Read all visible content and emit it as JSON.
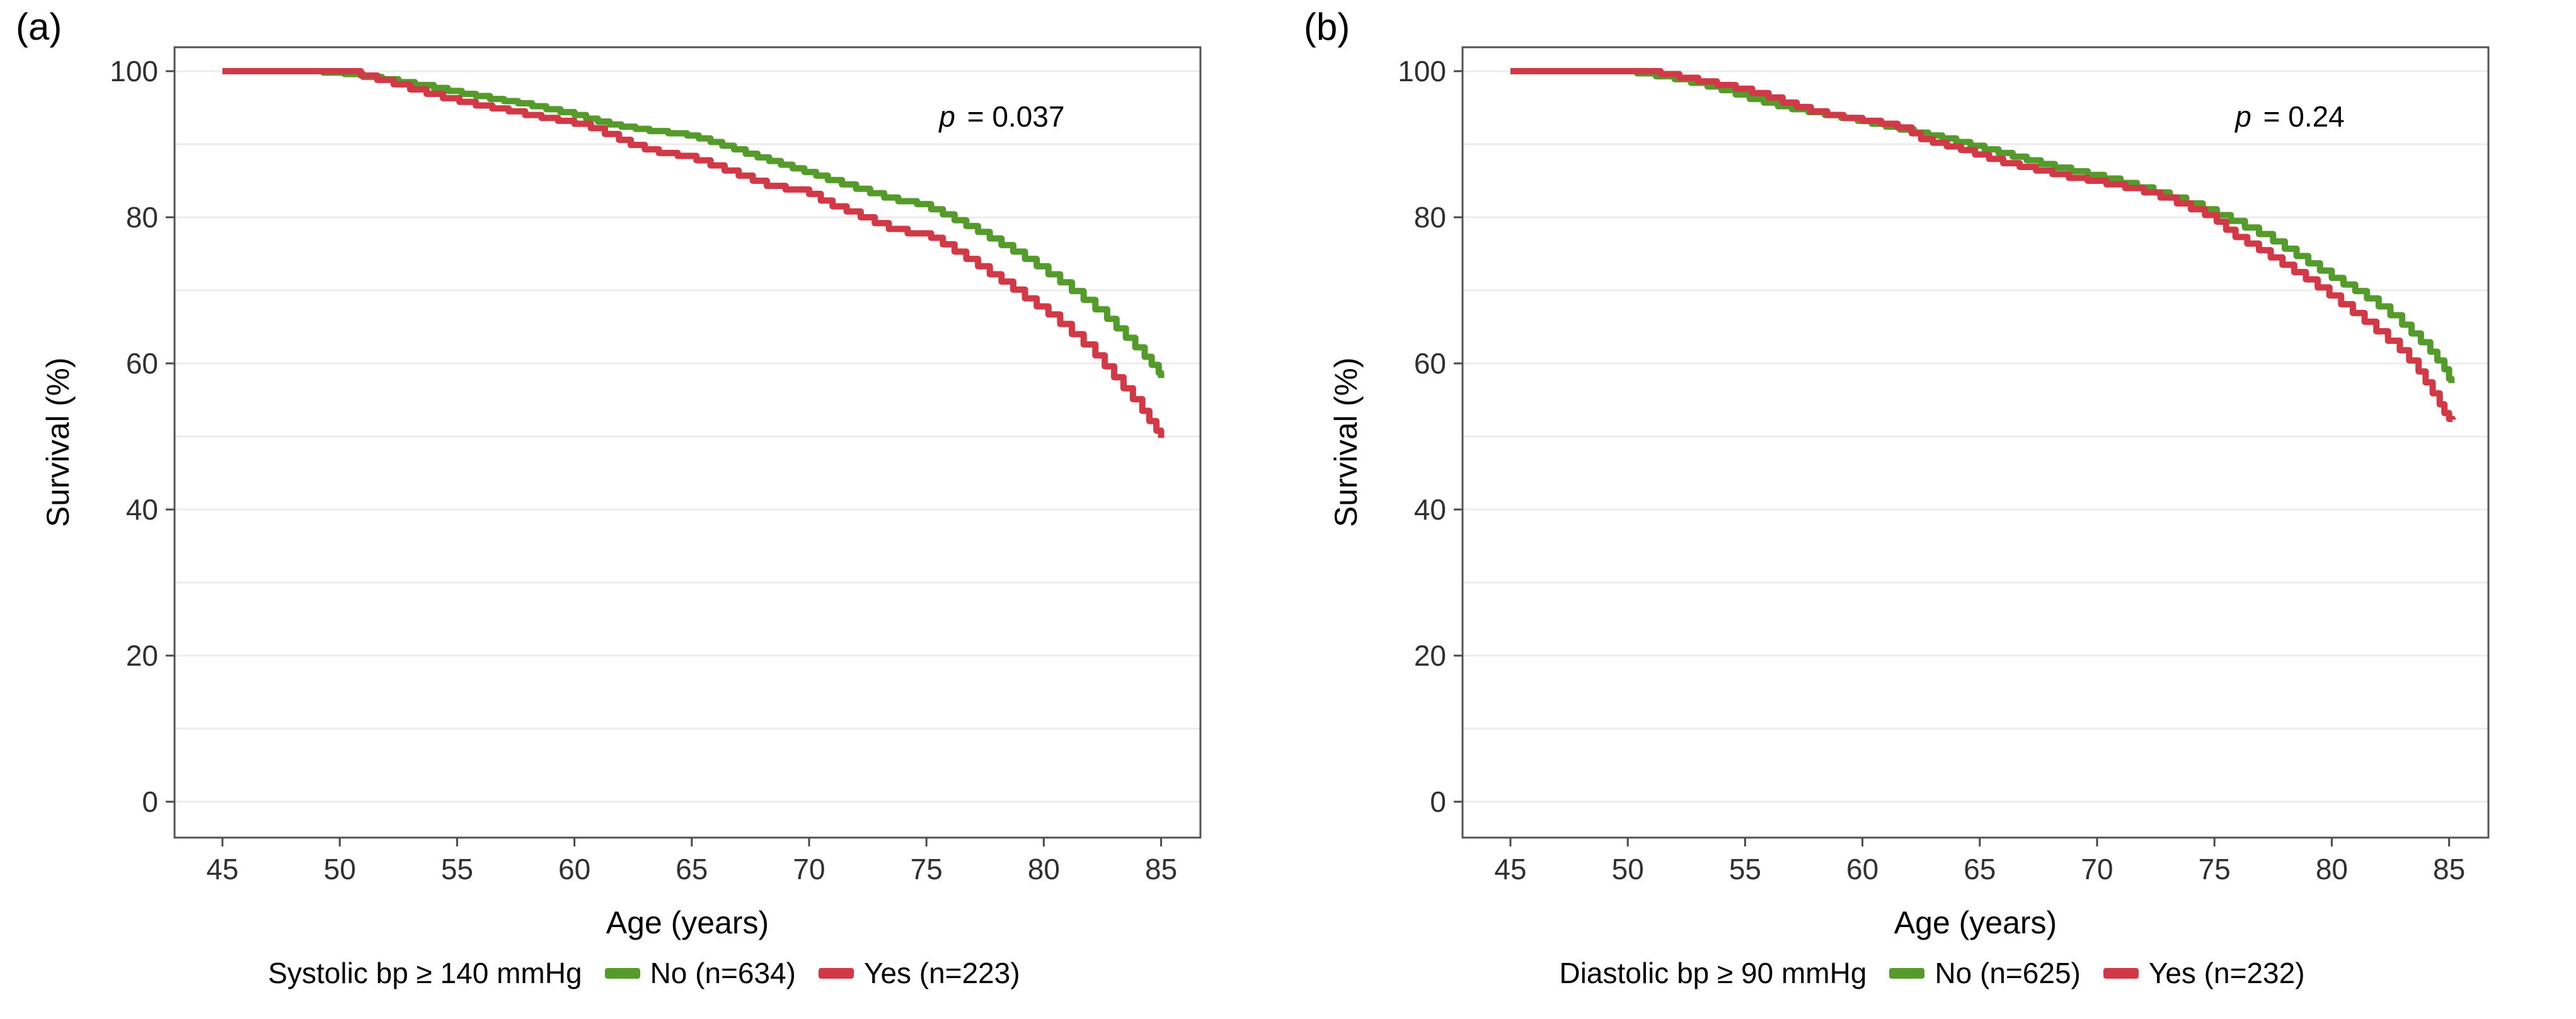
{
  "figure": {
    "background": "#ffffff",
    "grid_color": "#ececec",
    "border_color": "#545454",
    "tick_color": "#4a4a4a",
    "tick_label_color": "#303030",
    "green": "#549b2c",
    "red": "#d23946"
  },
  "chart_data": [
    {
      "type": "line",
      "panel_label": "(a)",
      "xlabel": "Age (years)",
      "ylabel": "Survival (%)",
      "x_ticks": [
        45,
        50,
        55,
        60,
        65,
        70,
        75,
        80,
        85
      ],
      "y_ticks": [
        0,
        20,
        40,
        60,
        80,
        100
      ],
      "xlim": [
        42.9,
        86.7
      ],
      "ylim": [
        -4.9,
        103.3
      ],
      "grid": "horizontal-only",
      "step": true,
      "legend_position": "bottom",
      "p_italic": "p",
      "p_rest": " = 0.037",
      "legend_title": "Systolic bp ≥ 140 mmHg",
      "series": [
        {
          "name": "No (n=634)",
          "color": "#549b2c",
          "points": [
            [
              45,
              100
            ],
            [
              49.3,
              99.8
            ],
            [
              50.2,
              99.6
            ],
            [
              51,
              99.2
            ],
            [
              51.8,
              98.9
            ],
            [
              52.5,
              98.5
            ],
            [
              53.2,
              98.1
            ],
            [
              54,
              97.7
            ],
            [
              54.6,
              97.3
            ],
            [
              55.2,
              96.9
            ],
            [
              55.8,
              96.6
            ],
            [
              56.4,
              96.2
            ],
            [
              57,
              95.9
            ],
            [
              57.6,
              95.6
            ],
            [
              58.2,
              95.2
            ],
            [
              58.8,
              94.8
            ],
            [
              59.4,
              94.4
            ],
            [
              60,
              94
            ],
            [
              60.5,
              93.5
            ],
            [
              61,
              93.1
            ],
            [
              61.5,
              92.7
            ],
            [
              62,
              92.4
            ],
            [
              62.6,
              92.1
            ],
            [
              63.2,
              91.8
            ],
            [
              64,
              91.5
            ],
            [
              64.8,
              91.2
            ],
            [
              65.3,
              90.8
            ],
            [
              65.8,
              90.3
            ],
            [
              66.3,
              89.8
            ],
            [
              66.8,
              89.3
            ],
            [
              67.3,
              88.7
            ],
            [
              67.8,
              88.2
            ],
            [
              68.3,
              87.7
            ],
            [
              68.8,
              87.2
            ],
            [
              69.3,
              86.7
            ],
            [
              69.8,
              86.2
            ],
            [
              70.3,
              85.7
            ],
            [
              70.8,
              85.1
            ],
            [
              71.4,
              84.5
            ],
            [
              72,
              83.9
            ],
            [
              72.6,
              83.3
            ],
            [
              73.2,
              82.7
            ],
            [
              73.8,
              82.2
            ],
            [
              74.6,
              81.8
            ],
            [
              75.2,
              81.1
            ],
            [
              75.7,
              80.4
            ],
            [
              76.2,
              79.6
            ],
            [
              76.7,
              78.8
            ],
            [
              77.2,
              78
            ],
            [
              77.7,
              77.1
            ],
            [
              78.2,
              76.2
            ],
            [
              78.7,
              75.3
            ],
            [
              79.2,
              74.3
            ],
            [
              79.7,
              73.3
            ],
            [
              80.2,
              72.2
            ],
            [
              80.7,
              71.1
            ],
            [
              81.2,
              69.9
            ],
            [
              81.7,
              68.7
            ],
            [
              82.2,
              67.4
            ],
            [
              82.7,
              66.1
            ],
            [
              83.1,
              64.8
            ],
            [
              83.5,
              63.5
            ],
            [
              83.9,
              62.2
            ],
            [
              84.3,
              60.9
            ],
            [
              84.6,
              59.8
            ],
            [
              84.9,
              58.7
            ],
            [
              85,
              58
            ]
          ]
        },
        {
          "name": "Yes (n=223)",
          "color": "#d23946",
          "points": [
            [
              45,
              100
            ],
            [
              50.9,
              99.4
            ],
            [
              51.6,
              98.8
            ],
            [
              52.3,
              98.2
            ],
            [
              53,
              97.5
            ],
            [
              53.7,
              96.9
            ],
            [
              54.4,
              96.3
            ],
            [
              55.1,
              95.8
            ],
            [
              55.8,
              95.3
            ],
            [
              56.5,
              94.9
            ],
            [
              57.2,
              94.5
            ],
            [
              57.9,
              94
            ],
            [
              58.6,
              93.6
            ],
            [
              59.3,
              93.2
            ],
            [
              60,
              92.8
            ],
            [
              60.7,
              92.2
            ],
            [
              61.3,
              91.4
            ],
            [
              61.9,
              90.6
            ],
            [
              62.4,
              89.9
            ],
            [
              63,
              89.3
            ],
            [
              63.6,
              88.8
            ],
            [
              64.4,
              88.4
            ],
            [
              65.2,
              87.8
            ],
            [
              65.8,
              87.1
            ],
            [
              66.4,
              86.4
            ],
            [
              67,
              85.7
            ],
            [
              67.6,
              85
            ],
            [
              68.2,
              84.3
            ],
            [
              69,
              83.8
            ],
            [
              70,
              83.2
            ],
            [
              70.5,
              82.3
            ],
            [
              71,
              81.5
            ],
            [
              71.6,
              80.8
            ],
            [
              72.2,
              80
            ],
            [
              72.8,
              79.2
            ],
            [
              73.4,
              78.4
            ],
            [
              74.2,
              77.8
            ],
            [
              75.2,
              77.2
            ],
            [
              75.7,
              76.3
            ],
            [
              76.2,
              75.3
            ],
            [
              76.7,
              74.3
            ],
            [
              77.2,
              73.3
            ],
            [
              77.7,
              72.2
            ],
            [
              78.2,
              71.2
            ],
            [
              78.7,
              70.1
            ],
            [
              79.2,
              68.9
            ],
            [
              79.7,
              67.8
            ],
            [
              80.2,
              66.7
            ],
            [
              80.7,
              65.4
            ],
            [
              81.2,
              64
            ],
            [
              81.7,
              62.6
            ],
            [
              82.2,
              61.1
            ],
            [
              82.6,
              59.6
            ],
            [
              83,
              58.1
            ],
            [
              83.4,
              56.6
            ],
            [
              83.8,
              55.1
            ],
            [
              84.2,
              53.5
            ],
            [
              84.5,
              52.1
            ],
            [
              84.8,
              50.8
            ],
            [
              85,
              49.8
            ]
          ]
        }
      ]
    },
    {
      "type": "line",
      "panel_label": "(b)",
      "xlabel": "Age (years)",
      "ylabel": "Survival (%)",
      "x_ticks": [
        45,
        50,
        55,
        60,
        65,
        70,
        75,
        80,
        85
      ],
      "y_ticks": [
        0,
        20,
        40,
        60,
        80,
        100
      ],
      "xlim": [
        42.9,
        86.7
      ],
      "ylim": [
        -4.9,
        103.3
      ],
      "grid": "horizontal-only",
      "step": true,
      "legend_position": "bottom",
      "p_italic": "p",
      "p_rest": " = 0.24",
      "legend_title": "Diastolic bp ≥ 90 mmHg",
      "series": [
        {
          "name": "No (n=625)",
          "color": "#549b2c",
          "points": [
            [
              45,
              100
            ],
            [
              50.4,
              99.7
            ],
            [
              51.2,
              99.3
            ],
            [
              52,
              98.9
            ],
            [
              52.7,
              98.4
            ],
            [
              53.4,
              97.9
            ],
            [
              54,
              97.4
            ],
            [
              54.6,
              96.8
            ],
            [
              55.2,
              96.2
            ],
            [
              55.8,
              95.7
            ],
            [
              56.4,
              95.2
            ],
            [
              57,
              94.8
            ],
            [
              57.7,
              94.4
            ],
            [
              58.4,
              94
            ],
            [
              59.1,
              93.6
            ],
            [
              59.8,
              93.2
            ],
            [
              60.4,
              92.8
            ],
            [
              61,
              92.4
            ],
            [
              61.6,
              92
            ],
            [
              62.2,
              91.6
            ],
            [
              62.8,
              91.2
            ],
            [
              63.4,
              90.8
            ],
            [
              64,
              90.3
            ],
            [
              64.6,
              89.8
            ],
            [
              65.2,
              89.3
            ],
            [
              65.8,
              88.8
            ],
            [
              66.4,
              88.3
            ],
            [
              67,
              87.8
            ],
            [
              67.6,
              87.3
            ],
            [
              68.2,
              86.8
            ],
            [
              68.9,
              86.3
            ],
            [
              69.6,
              85.8
            ],
            [
              70.3,
              85.3
            ],
            [
              71,
              84.7
            ],
            [
              71.7,
              84.1
            ],
            [
              72.4,
              83.4
            ],
            [
              73.1,
              82.7
            ],
            [
              73.8,
              81.9
            ],
            [
              74.5,
              81.1
            ],
            [
              75.1,
              80.3
            ],
            [
              75.7,
              79.5
            ],
            [
              76.3,
              78.6
            ],
            [
              76.9,
              77.7
            ],
            [
              77.5,
              76.7
            ],
            [
              78,
              75.7
            ],
            [
              78.5,
              74.7
            ],
            [
              79,
              73.7
            ],
            [
              79.5,
              72.7
            ],
            [
              80,
              71.7
            ],
            [
              80.5,
              70.8
            ],
            [
              81,
              69.9
            ],
            [
              81.5,
              68.9
            ],
            [
              82,
              67.8
            ],
            [
              82.5,
              66.6
            ],
            [
              83,
              65.3
            ],
            [
              83.4,
              64.1
            ],
            [
              83.8,
              62.9
            ],
            [
              84.2,
              61.6
            ],
            [
              84.5,
              60.4
            ],
            [
              84.8,
              59.2
            ],
            [
              85,
              57.9
            ],
            [
              85.1,
              57.3
            ]
          ]
        },
        {
          "name": "Yes (n=232)",
          "color": "#d23946",
          "points": [
            [
              45,
              100
            ],
            [
              51.4,
              99.6
            ],
            [
              52.2,
              99.1
            ],
            [
              53,
              98.6
            ],
            [
              53.8,
              98.1
            ],
            [
              54.6,
              97.6
            ],
            [
              55.3,
              97
            ],
            [
              56,
              96.4
            ],
            [
              56.6,
              95.7
            ],
            [
              57.2,
              95.1
            ],
            [
              57.8,
              94.5
            ],
            [
              58.5,
              94
            ],
            [
              59.2,
              93.6
            ],
            [
              60,
              93.2
            ],
            [
              60.8,
              92.8
            ],
            [
              61.5,
              92.3
            ],
            [
              62.1,
              91.5
            ],
            [
              62.5,
              90.7
            ],
            [
              63,
              90.2
            ],
            [
              63.6,
              89.7
            ],
            [
              64.2,
              89.2
            ],
            [
              64.8,
              88.6
            ],
            [
              65.4,
              88
            ],
            [
              66,
              87.4
            ],
            [
              66.7,
              86.9
            ],
            [
              67.4,
              86.4
            ],
            [
              68.1,
              85.9
            ],
            [
              68.8,
              85.4
            ],
            [
              69.6,
              85
            ],
            [
              70.4,
              84.5
            ],
            [
              71.2,
              84
            ],
            [
              72,
              83.4
            ],
            [
              72.7,
              82.7
            ],
            [
              73.4,
              81.9
            ],
            [
              74,
              81.1
            ],
            [
              74.6,
              80.3
            ],
            [
              75.1,
              79.4
            ],
            [
              75.5,
              78.3
            ],
            [
              75.9,
              77.3
            ],
            [
              76.4,
              76.4
            ],
            [
              76.9,
              75.5
            ],
            [
              77.4,
              74.5
            ],
            [
              77.9,
              73.5
            ],
            [
              78.4,
              72.5
            ],
            [
              78.9,
              71.5
            ],
            [
              79.4,
              70.4
            ],
            [
              79.9,
              69.3
            ],
            [
              80.4,
              68.1
            ],
            [
              80.9,
              66.9
            ],
            [
              81.4,
              65.7
            ],
            [
              81.9,
              64.4
            ],
            [
              82.4,
              63.1
            ],
            [
              82.9,
              61.8
            ],
            [
              83.3,
              60.4
            ],
            [
              83.7,
              58.9
            ],
            [
              84,
              57.4
            ],
            [
              84.3,
              55.9
            ],
            [
              84.6,
              54.4
            ],
            [
              84.8,
              53.2
            ],
            [
              85,
              52.4
            ],
            [
              85.15,
              52.3
            ]
          ]
        }
      ]
    }
  ]
}
